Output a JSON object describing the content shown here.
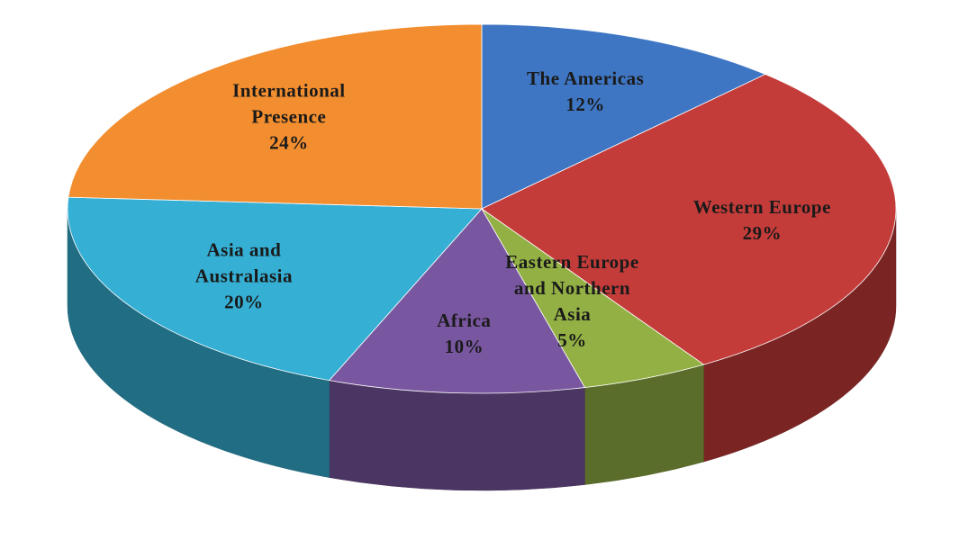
{
  "chart_data": {
    "type": "pie3d",
    "categories": [
      "The Americas",
      "Western Europe",
      "Eastern Europe and Northern Asia",
      "Africa",
      "Asia and Australasia",
      "International Presence"
    ],
    "values": [
      12,
      29,
      5,
      10,
      20,
      24
    ],
    "value_labels": [
      "12%",
      "29%",
      "5%",
      "10%",
      "20%",
      "24%"
    ],
    "colors": [
      "#3f76c4",
      "#c43c3a",
      "#93b044",
      "#7957a0",
      "#35afd4",
      "#f28e2f"
    ]
  }
}
